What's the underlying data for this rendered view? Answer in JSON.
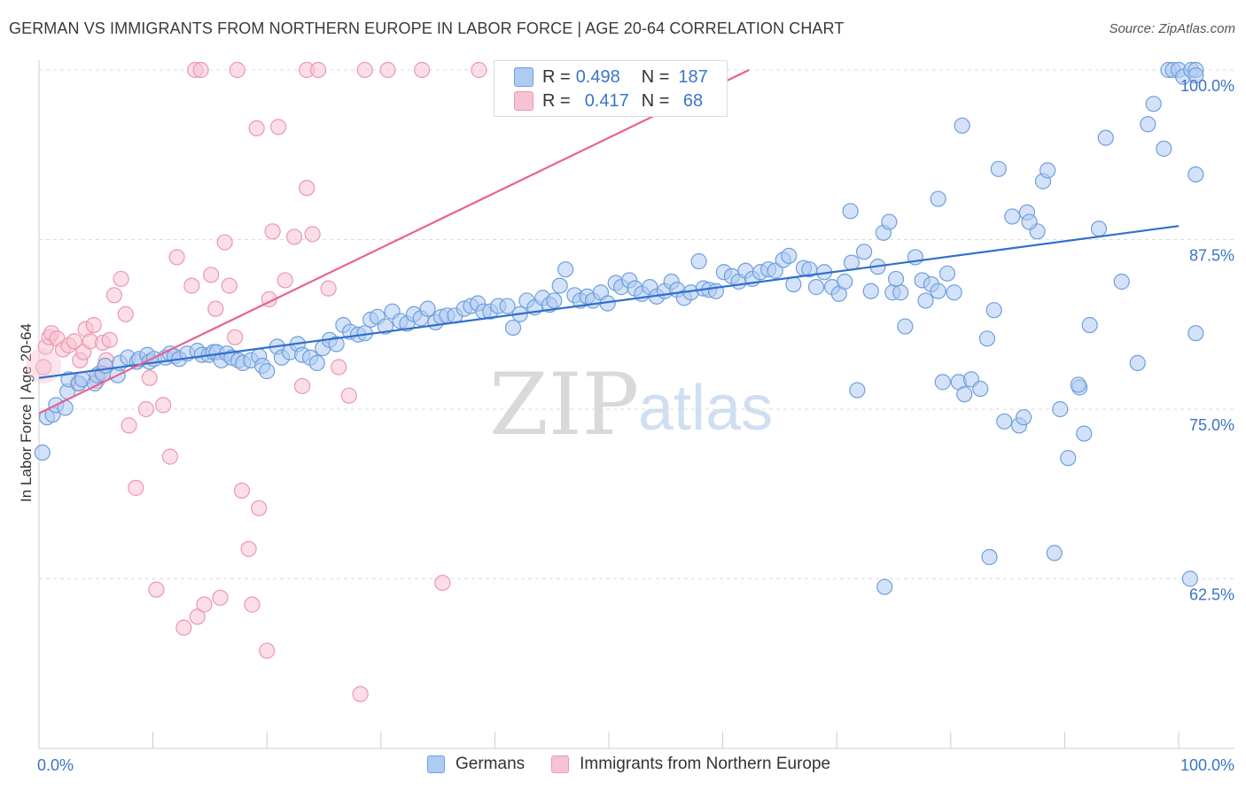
{
  "title": "GERMAN VS IMMIGRANTS FROM NORTHERN EUROPE IN LABOR FORCE | AGE 20-64 CORRELATION CHART",
  "source": "Source: ZipAtlas.com",
  "watermark": {
    "zip": "ZIP",
    "atlas": "atlas"
  },
  "legend": {
    "r_label": "R =",
    "n_label": "N =",
    "rows": [
      {
        "r": "0.498",
        "n": "187"
      },
      {
        "r": "0.417",
        "n": " 68"
      }
    ]
  },
  "colors": {
    "germans_fill": "#aecbf2",
    "germans_stroke": "#6f9fdc",
    "germans_line": "#2f6fce",
    "immig_fill": "#f7c3d2",
    "immig_stroke": "#ec97b1",
    "immig_line": "#e8628f",
    "grid": "#dddddd",
    "tick_text": "#3b74c8"
  },
  "chart_data": {
    "type": "scatter",
    "title": "GERMAN VS IMMIGRANTS FROM NORTHERN EUROPE IN LABOR FORCE | AGE 20-64 CORRELATION CHART",
    "xlabel": "",
    "ylabel": "In Labor Force | Age 20-64",
    "xlim": [
      0,
      100
    ],
    "ylim": [
      50,
      100
    ],
    "x_tick_labels": [
      "0.0%",
      "100.0%"
    ],
    "y_ticks": [
      62.5,
      75.0,
      87.5,
      100.0
    ],
    "y_tick_labels": [
      "62.5%",
      "75.0%",
      "87.5%",
      "100.0%"
    ],
    "grid": "horizontal dashed",
    "legend_position": "bottom",
    "series": [
      {
        "name": "Germans",
        "trend": {
          "x0": 0,
          "y0": 77.3,
          "x1": 100,
          "y1": 88.5
        },
        "points": [
          [
            0.3,
            71.8
          ],
          [
            0.7,
            74.4
          ],
          [
            1.2,
            74.6
          ],
          [
            1.5,
            75.3
          ],
          [
            2.3,
            75.1
          ],
          [
            2.5,
            76.3
          ],
          [
            2.6,
            77.2
          ],
          [
            3.5,
            76.9
          ],
          [
            3.8,
            77.2
          ],
          [
            4.9,
            76.9
          ],
          [
            5.1,
            77.5
          ],
          [
            5.6,
            77.6
          ],
          [
            5.8,
            78.2
          ],
          [
            6.9,
            77.5
          ],
          [
            7.1,
            78.4
          ],
          [
            7.8,
            78.8
          ],
          [
            8.6,
            78.5
          ],
          [
            8.8,
            78.7
          ],
          [
            9.5,
            79.0
          ],
          [
            9.7,
            78.5
          ],
          [
            10.1,
            78.7
          ],
          [
            11.1,
            78.8
          ],
          [
            11.5,
            79.1
          ],
          [
            11.9,
            78.9
          ],
          [
            12.3,
            78.7
          ],
          [
            13.0,
            79.1
          ],
          [
            13.9,
            79.3
          ],
          [
            14.3,
            79.0
          ],
          [
            14.9,
            79.0
          ],
          [
            15.3,
            79.2
          ],
          [
            15.6,
            79.2
          ],
          [
            16.0,
            78.6
          ],
          [
            16.5,
            79.1
          ],
          [
            16.9,
            78.8
          ],
          [
            17.5,
            78.6
          ],
          [
            17.9,
            78.4
          ],
          [
            18.6,
            78.6
          ],
          [
            19.3,
            78.9
          ],
          [
            19.6,
            78.2
          ],
          [
            20.0,
            77.8
          ],
          [
            20.9,
            79.6
          ],
          [
            21.3,
            78.8
          ],
          [
            22.0,
            79.2
          ],
          [
            22.7,
            79.8
          ],
          [
            23.1,
            79.0
          ],
          [
            23.8,
            78.8
          ],
          [
            24.4,
            78.4
          ],
          [
            24.9,
            79.5
          ],
          [
            25.5,
            80.1
          ],
          [
            26.1,
            79.8
          ],
          [
            26.7,
            81.2
          ],
          [
            27.3,
            80.7
          ],
          [
            28.0,
            80.5
          ],
          [
            28.6,
            80.6
          ],
          [
            29.1,
            81.6
          ],
          [
            29.7,
            81.8
          ],
          [
            30.4,
            81.1
          ],
          [
            31.0,
            82.2
          ],
          [
            31.7,
            81.5
          ],
          [
            32.3,
            81.3
          ],
          [
            32.9,
            82.0
          ],
          [
            33.5,
            81.7
          ],
          [
            34.1,
            82.4
          ],
          [
            34.8,
            81.4
          ],
          [
            35.3,
            81.8
          ],
          [
            35.8,
            81.9
          ],
          [
            36.5,
            81.9
          ],
          [
            37.3,
            82.4
          ],
          [
            37.9,
            82.6
          ],
          [
            38.5,
            82.8
          ],
          [
            39.0,
            82.2
          ],
          [
            39.6,
            82.2
          ],
          [
            40.3,
            82.6
          ],
          [
            41.1,
            82.6
          ],
          [
            41.6,
            81.0
          ],
          [
            42.2,
            82.0
          ],
          [
            42.8,
            83.0
          ],
          [
            43.5,
            82.5
          ],
          [
            44.2,
            83.2
          ],
          [
            44.8,
            82.7
          ],
          [
            45.2,
            83.0
          ],
          [
            45.7,
            84.1
          ],
          [
            46.2,
            85.3
          ],
          [
            47.0,
            83.4
          ],
          [
            47.5,
            83.0
          ],
          [
            48.1,
            83.3
          ],
          [
            48.6,
            83.0
          ],
          [
            49.3,
            83.6
          ],
          [
            49.9,
            82.8
          ],
          [
            50.6,
            84.3
          ],
          [
            51.1,
            84.0
          ],
          [
            51.8,
            84.5
          ],
          [
            52.3,
            83.9
          ],
          [
            52.9,
            83.5
          ],
          [
            53.6,
            84.0
          ],
          [
            54.2,
            83.3
          ],
          [
            54.9,
            83.7
          ],
          [
            55.5,
            84.4
          ],
          [
            56.0,
            83.8
          ],
          [
            56.6,
            83.2
          ],
          [
            57.2,
            83.6
          ],
          [
            57.9,
            85.9
          ],
          [
            58.3,
            83.9
          ],
          [
            58.8,
            83.8
          ],
          [
            59.4,
            83.7
          ],
          [
            60.1,
            85.1
          ],
          [
            60.8,
            84.8
          ],
          [
            61.4,
            84.4
          ],
          [
            62.0,
            85.2
          ],
          [
            62.6,
            84.6
          ],
          [
            63.3,
            85.1
          ],
          [
            64.0,
            85.3
          ],
          [
            64.6,
            85.2
          ],
          [
            65.3,
            86.0
          ],
          [
            65.8,
            86.3
          ],
          [
            66.2,
            84.2
          ],
          [
            67.1,
            85.4
          ],
          [
            67.6,
            85.3
          ],
          [
            68.2,
            84.0
          ],
          [
            68.9,
            85.1
          ],
          [
            69.6,
            84.0
          ],
          [
            70.2,
            83.5
          ],
          [
            70.7,
            84.4
          ],
          [
            71.3,
            85.8
          ],
          [
            71.8,
            76.4
          ],
          [
            72.4,
            86.6
          ],
          [
            73.0,
            83.7
          ],
          [
            73.6,
            85.5
          ],
          [
            74.1,
            88.0
          ],
          [
            74.6,
            88.8
          ],
          [
            74.9,
            83.6
          ],
          [
            75.6,
            83.6
          ],
          [
            76.0,
            81.1
          ],
          [
            76.9,
            86.2
          ],
          [
            77.5,
            84.5
          ],
          [
            77.8,
            83.0
          ],
          [
            78.3,
            84.2
          ],
          [
            78.9,
            83.7
          ],
          [
            79.3,
            77.0
          ],
          [
            79.7,
            85.0
          ],
          [
            80.3,
            83.6
          ],
          [
            80.7,
            77.0
          ],
          [
            81.2,
            76.1
          ],
          [
            81.8,
            77.2
          ],
          [
            82.6,
            76.5
          ],
          [
            83.2,
            80.2
          ],
          [
            83.8,
            82.3
          ],
          [
            84.7,
            74.1
          ],
          [
            85.4,
            89.2
          ],
          [
            86.0,
            73.8
          ],
          [
            86.4,
            74.4
          ],
          [
            86.7,
            89.5
          ],
          [
            87.6,
            88.1
          ],
          [
            88.1,
            91.8
          ],
          [
            88.5,
            92.6
          ],
          [
            89.6,
            75.0
          ],
          [
            90.3,
            71.4
          ],
          [
            91.3,
            76.6
          ],
          [
            91.7,
            73.2
          ],
          [
            92.2,
            81.2
          ],
          [
            93.0,
            88.3
          ],
          [
            93.6,
            95.0
          ],
          [
            95.0,
            84.4
          ],
          [
            96.4,
            78.4
          ],
          [
            97.3,
            96.0
          ],
          [
            97.8,
            97.5
          ],
          [
            98.7,
            94.2
          ],
          [
            99.1,
            100.0
          ],
          [
            99.5,
            100.0
          ],
          [
            100.0,
            100.0
          ],
          [
            100.4,
            99.5
          ],
          [
            101.1,
            100.0
          ],
          [
            101.5,
            100.0
          ],
          [
            102.0,
            99.6
          ],
          [
            102.3,
            80.6
          ],
          [
            103.2,
            92.3
          ],
          [
            81.0,
            95.9
          ],
          [
            86.9,
            88.8
          ],
          [
            84.2,
            92.7
          ],
          [
            78.9,
            90.5
          ],
          [
            71.2,
            89.6
          ],
          [
            83.4,
            64.1
          ],
          [
            89.1,
            64.4
          ],
          [
            75.2,
            84.6
          ],
          [
            91.2,
            76.8
          ],
          [
            74.2,
            61.9
          ],
          [
            101.0,
            62.5
          ]
        ]
      },
      {
        "name": "Immigrants from Northern Europe",
        "trend": {
          "x0": 0,
          "y0": 74.7,
          "x1": 62.3,
          "y1": 100.0
        },
        "points": [
          [
            0.4,
            78.1
          ],
          [
            0.6,
            79.6
          ],
          [
            0.9,
            80.3
          ],
          [
            1.1,
            80.6
          ],
          [
            1.6,
            80.2
          ],
          [
            2.1,
            79.4
          ],
          [
            2.6,
            79.7
          ],
          [
            3.1,
            80.0
          ],
          [
            3.4,
            76.9
          ],
          [
            3.6,
            78.6
          ],
          [
            3.9,
            79.2
          ],
          [
            4.1,
            80.9
          ],
          [
            4.5,
            80.0
          ],
          [
            4.8,
            81.2
          ],
          [
            5.1,
            77.1
          ],
          [
            5.4,
            77.7
          ],
          [
            5.6,
            79.9
          ],
          [
            5.9,
            78.6
          ],
          [
            6.2,
            80.1
          ],
          [
            6.6,
            83.4
          ],
          [
            7.2,
            84.6
          ],
          [
            7.6,
            82.0
          ],
          [
            7.9,
            73.8
          ],
          [
            8.5,
            69.2
          ],
          [
            9.4,
            75.0
          ],
          [
            9.7,
            77.3
          ],
          [
            10.3,
            61.7
          ],
          [
            10.9,
            75.3
          ],
          [
            11.5,
            71.5
          ],
          [
            12.1,
            86.2
          ],
          [
            12.7,
            58.9
          ],
          [
            13.4,
            84.1
          ],
          [
            13.9,
            59.7
          ],
          [
            14.5,
            60.6
          ],
          [
            15.1,
            84.9
          ],
          [
            15.5,
            82.4
          ],
          [
            15.9,
            61.1
          ],
          [
            16.3,
            87.3
          ],
          [
            16.7,
            84.1
          ],
          [
            17.2,
            80.3
          ],
          [
            17.8,
            69.0
          ],
          [
            18.4,
            64.7
          ],
          [
            18.7,
            60.6
          ],
          [
            19.3,
            67.7
          ],
          [
            20.0,
            57.2
          ],
          [
            20.5,
            88.1
          ],
          [
            21.0,
            95.8
          ],
          [
            21.6,
            84.5
          ],
          [
            22.4,
            87.7
          ],
          [
            23.1,
            76.7
          ],
          [
            23.5,
            91.3
          ],
          [
            24.0,
            87.9
          ],
          [
            23.5,
            100.0
          ],
          [
            24.5,
            100.0
          ],
          [
            30.6,
            100.0
          ],
          [
            28.6,
            100.0
          ],
          [
            33.6,
            100.0
          ],
          [
            38.6,
            100.0
          ],
          [
            13.7,
            100.0
          ],
          [
            14.2,
            100.0
          ],
          [
            17.4,
            100.0
          ],
          [
            19.1,
            95.7
          ],
          [
            20.2,
            83.1
          ],
          [
            25.4,
            83.9
          ],
          [
            26.3,
            78.1
          ],
          [
            27.2,
            76.0
          ],
          [
            35.4,
            62.2
          ],
          [
            28.2,
            54.0
          ]
        ]
      }
    ]
  }
}
